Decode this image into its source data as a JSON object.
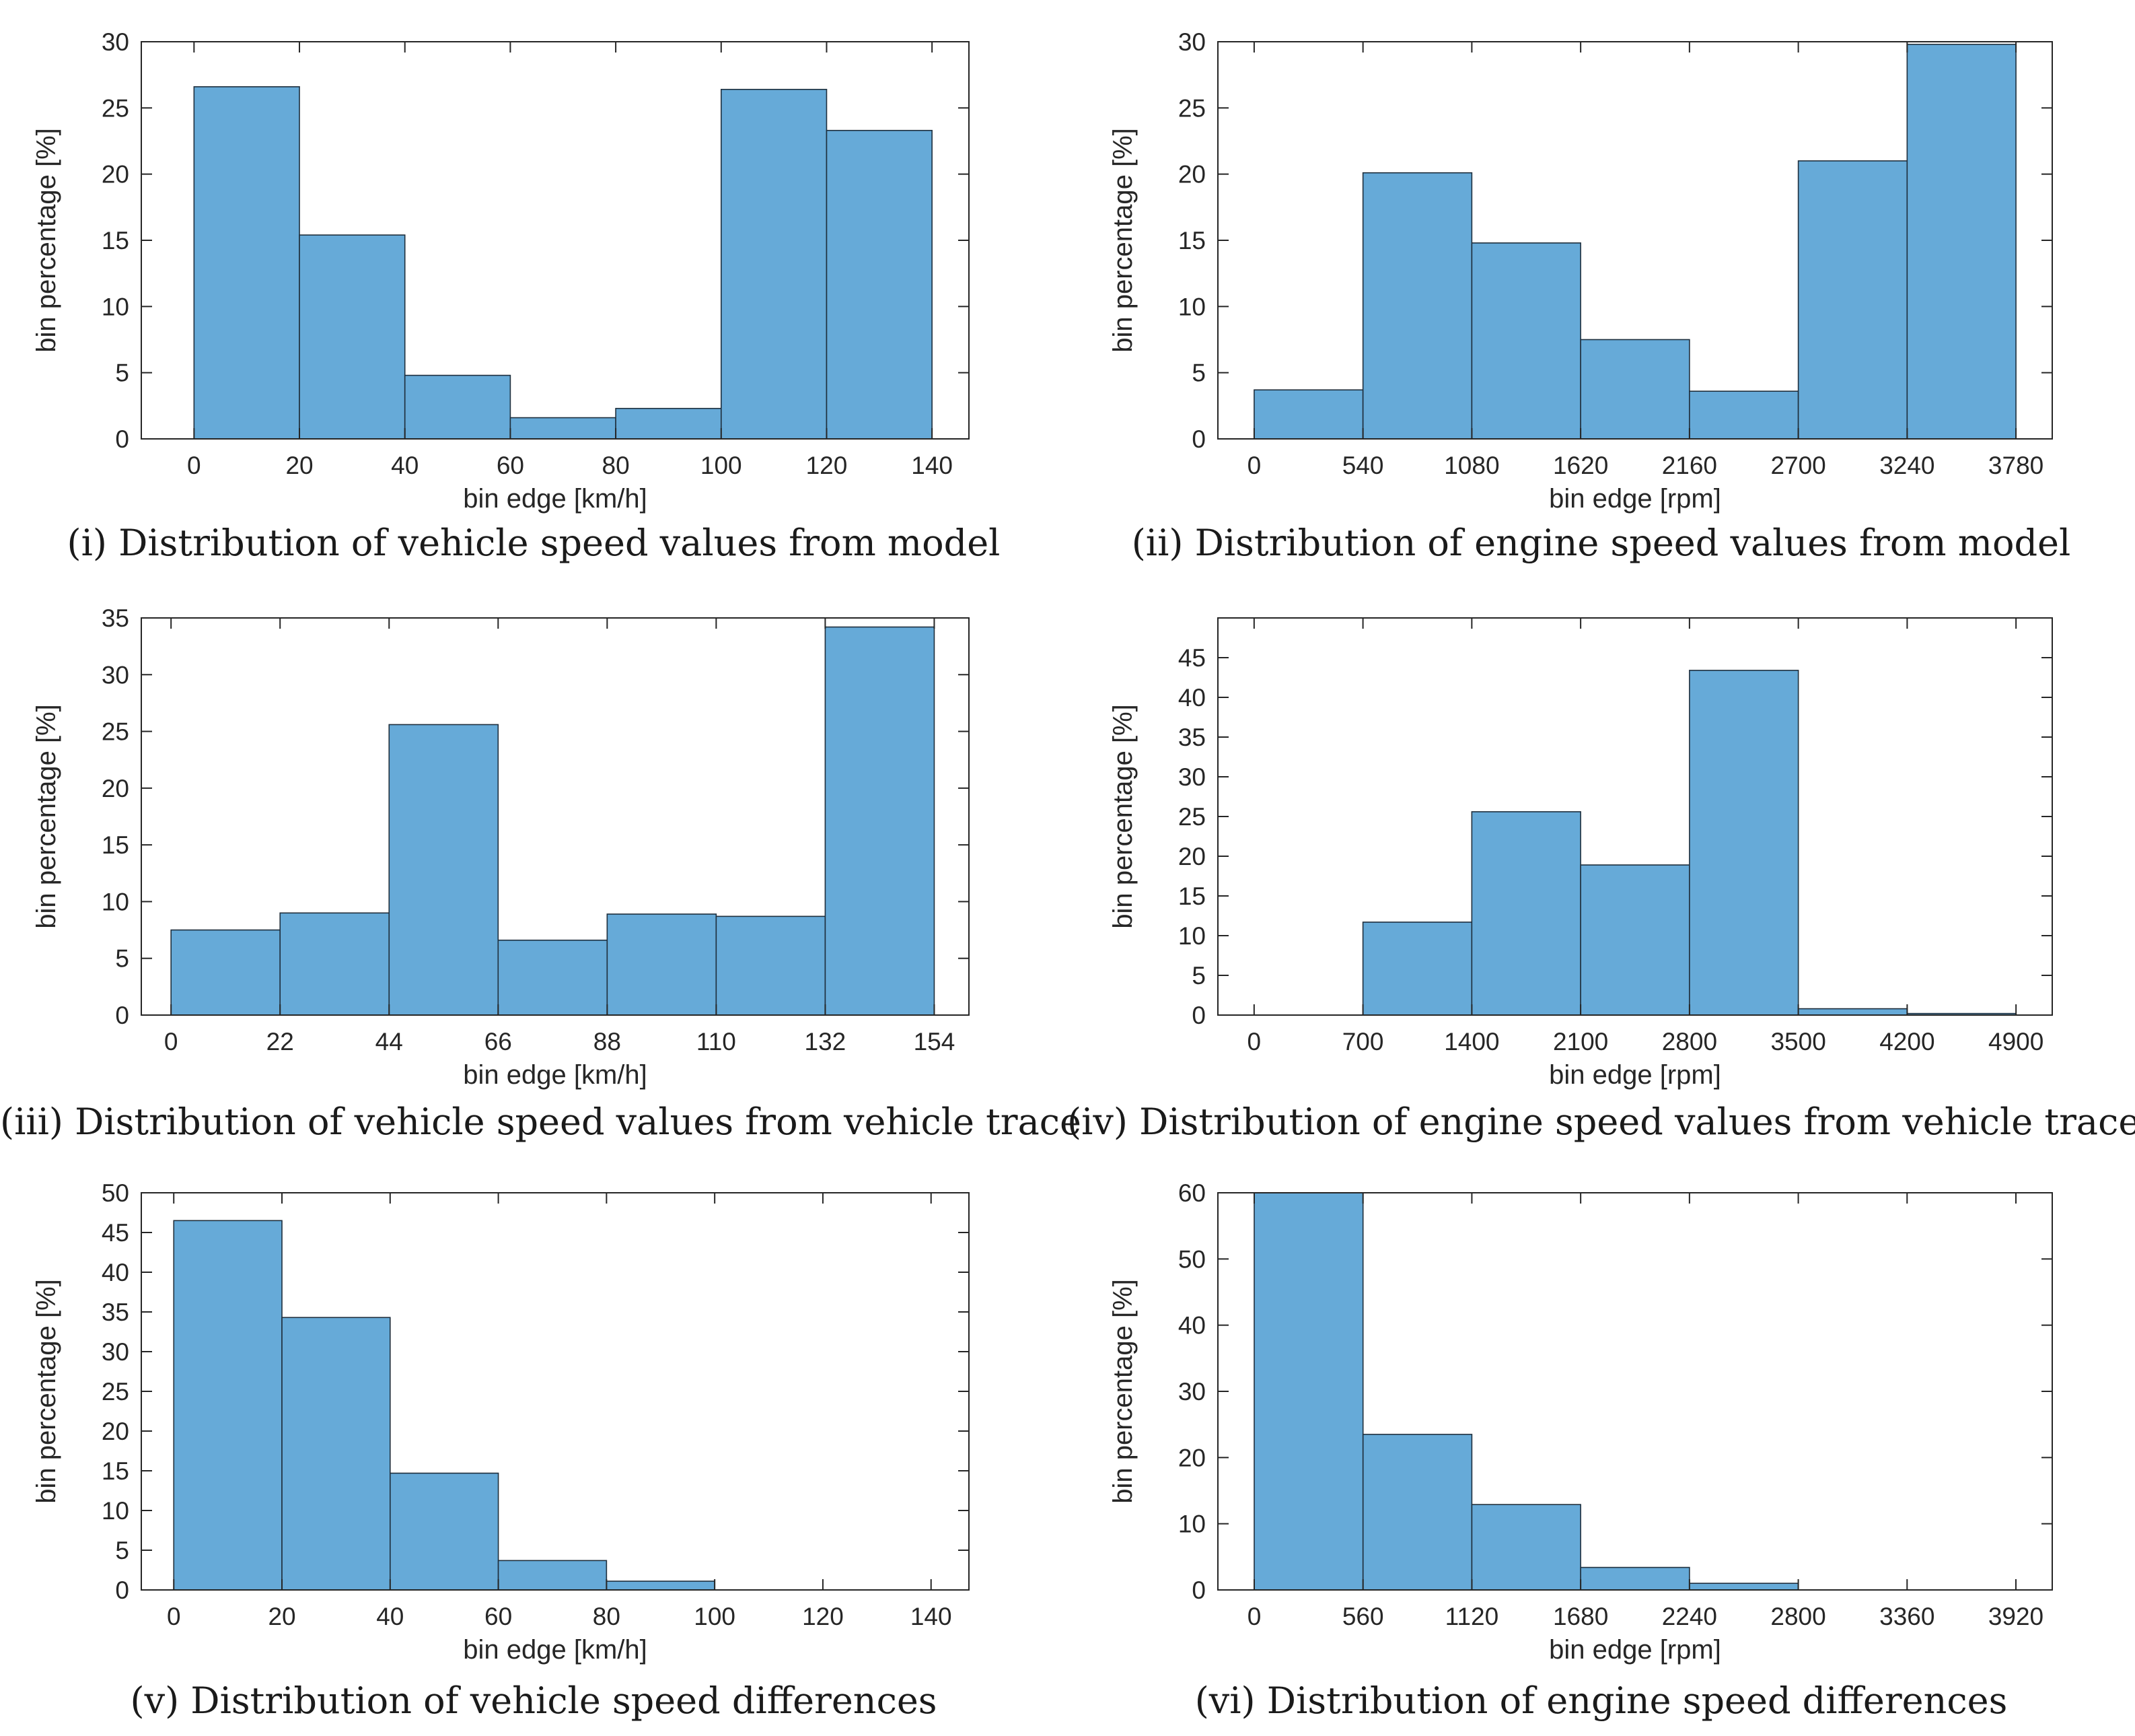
{
  "chart_data": [
    {
      "type": "bar",
      "panel": "i",
      "caption": "(i) Distribution of vehicle speed values from model",
      "xlabel": "bin edge [km/h]",
      "ylabel": "bin percentage [%]",
      "bin_edges": [
        0,
        20,
        40,
        60,
        80,
        100,
        120,
        140
      ],
      "xticks": [
        "0",
        "20",
        "40",
        "60",
        "80",
        "100",
        "120",
        "140"
      ],
      "xlim": [
        -10,
        147
      ],
      "values": [
        26.6,
        15.4,
        4.8,
        1.6,
        2.3,
        26.4,
        23.3
      ],
      "ylim": [
        0,
        30
      ],
      "yticks": [
        "0",
        "5",
        "10",
        "15",
        "20",
        "25",
        "30"
      ],
      "bar_color": "#66aad8"
    },
    {
      "type": "bar",
      "panel": "ii",
      "caption": "(ii) Distribution of engine speed values from model",
      "xlabel": "bin edge [rpm]",
      "ylabel": "bin percentage [%]",
      "bin_edges": [
        0,
        540,
        1080,
        1620,
        2160,
        2700,
        3240,
        3780
      ],
      "xticks": [
        "0",
        "540",
        "1080",
        "1620",
        "2160",
        "2700",
        "3240",
        "3780"
      ],
      "xlim": [
        -180,
        3960
      ],
      "values": [
        3.7,
        20.1,
        14.8,
        7.5,
        3.6,
        21.0,
        29.8
      ],
      "ylim": [
        0,
        30
      ],
      "yticks": [
        "0",
        "5",
        "10",
        "15",
        "20",
        "25",
        "30"
      ],
      "bar_color": "#66aad8"
    },
    {
      "type": "bar",
      "panel": "iii",
      "caption": "(iii) Distribution of vehicle speed values from vehicle trace",
      "xlabel": "bin edge [km/h]",
      "ylabel": "bin percentage [%]",
      "bin_edges": [
        0,
        22,
        44,
        66,
        88,
        110,
        132,
        154
      ],
      "xticks": [
        "0",
        "22",
        "44",
        "66",
        "88",
        "110",
        "132",
        "154"
      ],
      "xlim": [
        -6,
        161
      ],
      "values": [
        7.5,
        9.0,
        25.6,
        6.6,
        8.9,
        8.7,
        34.2
      ],
      "ylim": [
        0,
        35
      ],
      "yticks": [
        "0",
        "5",
        "10",
        "15",
        "20",
        "25",
        "30",
        "35"
      ],
      "bar_color": "#66aad8"
    },
    {
      "type": "bar",
      "panel": "iv",
      "caption": "(iv) Distribution of engine speed values from vehicle trace",
      "xlabel": "bin edge [rpm]",
      "ylabel": "bin percentage [%]",
      "bin_edges": [
        0,
        700,
        1400,
        2100,
        2800,
        3500,
        4200,
        4900
      ],
      "xticks": [
        "0",
        "700",
        "1400",
        "2100",
        "2800",
        "3500",
        "4200",
        "4900"
      ],
      "xlim": [
        -233,
        5133
      ],
      "values": [
        0.0,
        11.7,
        25.6,
        18.9,
        43.4,
        0.8,
        0.2
      ],
      "ylim": [
        0,
        50
      ],
      "yticks": [
        "0",
        "5",
        "10",
        "15",
        "20",
        "25",
        "30",
        "35",
        "40",
        "45"
      ],
      "bar_color": "#66aad8"
    },
    {
      "type": "bar",
      "panel": "v",
      "caption": "(v) Distribution of vehicle speed differences",
      "xlabel": "bin edge [km/h]",
      "ylabel": "bin percentage [%]",
      "bin_edges": [
        0,
        20,
        40,
        60,
        80,
        100,
        120,
        140
      ],
      "xticks": [
        "0",
        "20",
        "40",
        "60",
        "80",
        "100",
        "120",
        "140"
      ],
      "xlim": [
        -6,
        147
      ],
      "values": [
        46.5,
        34.3,
        14.7,
        3.7,
        1.1,
        0.0,
        0.0
      ],
      "ylim": [
        0,
        50
      ],
      "yticks": [
        "0",
        "5",
        "10",
        "15",
        "20",
        "25",
        "30",
        "35",
        "40",
        "45",
        "50"
      ],
      "bar_color": "#66aad8"
    },
    {
      "type": "bar",
      "panel": "vi",
      "caption": "(vi) Distribution of engine speed differences",
      "xlabel": "bin edge [rpm]",
      "ylabel": "bin percentage [%]",
      "bin_edges": [
        0,
        560,
        1120,
        1680,
        2240,
        2800,
        3360,
        3920
      ],
      "xticks": [
        "0",
        "560",
        "1120",
        "1680",
        "2240",
        "2800",
        "3360",
        "3920"
      ],
      "xlim": [
        -187,
        4107
      ],
      "values": [
        60.0,
        23.5,
        12.9,
        3.4,
        1.0,
        0.0,
        0.0
      ],
      "ylim": [
        0,
        60
      ],
      "yticks": [
        "0",
        "10",
        "20",
        "30",
        "40",
        "50",
        "60"
      ],
      "bar_color": "#66aad8"
    }
  ]
}
